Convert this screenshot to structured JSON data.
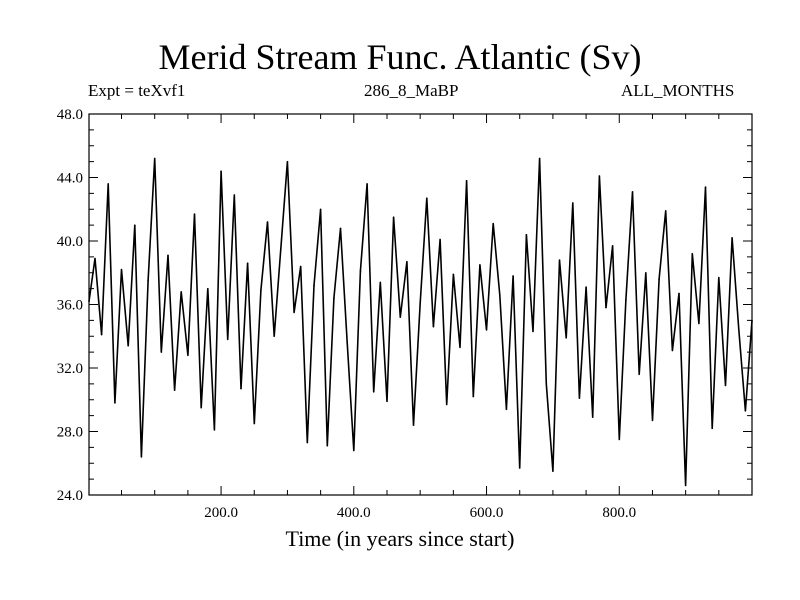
{
  "header": {
    "title": "Merid Stream Func. Atlantic (Sv)",
    "left": "Expt = teXvf1",
    "center": "286_8_MaBP",
    "right": "ALL_MONTHS"
  },
  "chart_data": {
    "type": "line",
    "title": "Merid Stream Func. Atlantic (Sv)",
    "xlabel": "Time (in years since start)",
    "ylabel": "",
    "xlim": [
      1,
      1000
    ],
    "ylim": [
      24.0,
      48.0
    ],
    "xticks": [
      200.0,
      400.0,
      600.0,
      800.0
    ],
    "xtick_labels": [
      "200.0",
      "400.0",
      "600.0",
      "800.0"
    ],
    "yticks": [
      24.0,
      28.0,
      32.0,
      36.0,
      40.0,
      44.0,
      48.0
    ],
    "ytick_labels": [
      "24.0",
      "28.0",
      "32.0",
      "36.0",
      "40.0",
      "44.0",
      "48.0"
    ],
    "grid": false,
    "series": [
      {
        "x": [
          1,
          10,
          20,
          30,
          40,
          50,
          60,
          70,
          80,
          90,
          100,
          110,
          120,
          130,
          140,
          150,
          160,
          170,
          180,
          190,
          200,
          210,
          220,
          230,
          240,
          250,
          260,
          270,
          280,
          290,
          300,
          310,
          320,
          330,
          340,
          350,
          360,
          370,
          380,
          390,
          400,
          410,
          420,
          430,
          440,
          450,
          460,
          470,
          480,
          490,
          500,
          510,
          520,
          530,
          540,
          550,
          560,
          570,
          580,
          590,
          600,
          610,
          620,
          630,
          640,
          650,
          660,
          670,
          680,
          690,
          700,
          710,
          720,
          730,
          740,
          750,
          760,
          770,
          780,
          790,
          800,
          810,
          820,
          830,
          840,
          850,
          860,
          870,
          880,
          890,
          900,
          910,
          920,
          930,
          940,
          950,
          960,
          970,
          980,
          990,
          1000
        ],
        "values": [
          36.2,
          38.9,
          34.1,
          43.6,
          29.8,
          38.2,
          33.4,
          41.0,
          26.4,
          37.5,
          45.2,
          33.0,
          39.1,
          30.6,
          36.8,
          32.8,
          41.7,
          29.5,
          37.0,
          28.1,
          44.4,
          33.8,
          42.9,
          30.7,
          38.6,
          28.5,
          36.9,
          41.2,
          34.0,
          39.5,
          45.0,
          35.5,
          38.4,
          27.3,
          37.2,
          42.0,
          27.1,
          36.4,
          40.8,
          33.6,
          26.8,
          38.1,
          43.6,
          30.5,
          37.4,
          29.9,
          41.5,
          35.2,
          38.7,
          28.4,
          36.1,
          42.7,
          34.6,
          40.1,
          29.7,
          37.9,
          33.3,
          43.8,
          30.2,
          38.5,
          34.4,
          41.1,
          36.6,
          29.4,
          37.8,
          25.7,
          40.4,
          34.3,
          45.2,
          31.0,
          25.5,
          38.8,
          33.9,
          42.4,
          30.1,
          37.1,
          28.9,
          44.1,
          35.8,
          39.7,
          27.5,
          36.3,
          43.1,
          31.6,
          38.0,
          28.7,
          37.6,
          41.9,
          33.1,
          36.7,
          24.6,
          39.2,
          34.8,
          43.4,
          28.2,
          37.7,
          30.9,
          40.2,
          34.5,
          29.3,
          35.0
        ]
      }
    ]
  }
}
